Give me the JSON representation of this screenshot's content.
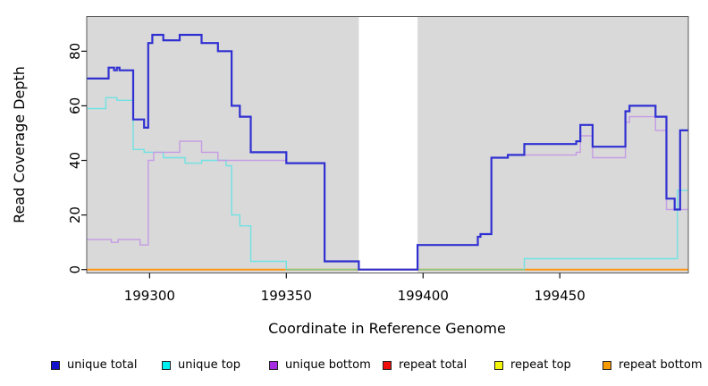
{
  "figure": {
    "y_axis_title": "Read Coverage Depth",
    "x_axis_title": "Coordinate in Reference Genome"
  },
  "colors": {
    "panel_background": "#d9d9d9",
    "panel_border": "#5a5a5a",
    "axis": "#111111",
    "gap_fill": "#ffffff",
    "baseline_blend_green": "#82ca8c"
  },
  "legend": {
    "items": [
      {
        "label": "unique total",
        "color": "#1414cc"
      },
      {
        "label": "unique top",
        "color": "#00f0f0"
      },
      {
        "label": "unique bottom",
        "color": "#a62ce2"
      },
      {
        "label": "repeat total",
        "color": "#f20d0d"
      },
      {
        "label": "repeat top",
        "color": "#f5f50a"
      },
      {
        "label": "repeat bottom",
        "color": "#f59b00"
      }
    ]
  },
  "chart_data": {
    "type": "line",
    "subtype": "step-after",
    "title": "",
    "xlabel": "Coordinate in Reference Genome",
    "ylabel": "Read Coverage Depth",
    "xlim": [
      199277,
      199497
    ],
    "ylim": [
      0,
      93
    ],
    "grid": false,
    "legend_position": "bottom",
    "x_ticks": [
      {
        "value": 199300,
        "label": "199300"
      },
      {
        "value": 199350,
        "label": "199350"
      },
      {
        "value": 199400,
        "label": "199400"
      },
      {
        "value": 199450,
        "label": "199450"
      }
    ],
    "y_ticks": [
      {
        "value": 0,
        "label": "0"
      },
      {
        "value": 20,
        "label": "20"
      },
      {
        "value": 40,
        "label": "40"
      },
      {
        "value": 60,
        "label": "60"
      },
      {
        "value": 80,
        "label": "80"
      }
    ],
    "gap_region": {
      "start": 199376.5,
      "end": 199398,
      "note": "unshaded vertical band where coverage is zero"
    },
    "series": [
      {
        "name": "repeat total",
        "color": "#f20d0d",
        "width": 1.4,
        "in_legend": true,
        "points": [
          [
            199277,
            0
          ],
          [
            199497,
            0
          ]
        ]
      },
      {
        "name": "repeat top",
        "color": "#f5f50a",
        "width": 1.4,
        "in_legend": true,
        "points": [
          [
            199277,
            0
          ],
          [
            199497,
            0
          ]
        ]
      },
      {
        "name": "repeat bottom",
        "color": "#ff9712",
        "width": 2,
        "in_legend": true,
        "points": [
          [
            199277,
            0
          ],
          [
            199497,
            0
          ]
        ]
      },
      {
        "name": "unique top",
        "color": "#6fe2e4",
        "width": 1.4,
        "in_legend": true,
        "points": [
          [
            199277,
            59
          ],
          [
            199284,
            63
          ],
          [
            199288,
            62
          ],
          [
            199294,
            44
          ],
          [
            199298,
            43
          ],
          [
            199305,
            41
          ],
          [
            199313,
            39
          ],
          [
            199319,
            40
          ],
          [
            199328,
            38
          ],
          [
            199330,
            20
          ],
          [
            199333,
            16
          ],
          [
            199337,
            3
          ],
          [
            199350,
            0
          ],
          [
            199437,
            4
          ],
          [
            199493,
            29
          ]
        ]
      },
      {
        "name": "baseline blend artifact",
        "color": "#82ca8c",
        "width": 1.6,
        "in_legend": false,
        "points": [
          [
            199350,
            0
          ],
          [
            199437,
            0
          ]
        ]
      },
      {
        "name": "unique bottom",
        "color": "#c59ce4",
        "width": 1.4,
        "in_legend": true,
        "points": [
          [
            199277,
            11
          ],
          [
            199286,
            10
          ],
          [
            199288.5,
            11
          ],
          [
            199296.5,
            9
          ],
          [
            199299.5,
            40
          ],
          [
            199301.5,
            43
          ],
          [
            199311,
            47
          ],
          [
            199319,
            43
          ],
          [
            199325,
            40
          ],
          [
            199350,
            39
          ],
          [
            199364,
            3
          ],
          [
            199376.5,
            0
          ],
          [
            199398,
            9
          ],
          [
            199420,
            12
          ],
          [
            199421,
            13
          ],
          [
            199425,
            41
          ],
          [
            199431,
            42
          ],
          [
            199437,
            42
          ],
          [
            199456,
            43
          ],
          [
            199457.5,
            49
          ],
          [
            199462,
            41
          ],
          [
            199474,
            54
          ],
          [
            199475.5,
            56
          ],
          [
            199485,
            51
          ],
          [
            199489,
            22
          ]
        ]
      },
      {
        "name": "unique total",
        "color": "#3030d2",
        "width": 2.2,
        "in_legend": true,
        "points": [
          [
            199277,
            70
          ],
          [
            199285,
            74
          ],
          [
            199287,
            73
          ],
          [
            199288,
            74
          ],
          [
            199289,
            73
          ],
          [
            199294,
            55
          ],
          [
            199298,
            52
          ],
          [
            199299.5,
            83
          ],
          [
            199301,
            86
          ],
          [
            199305,
            84
          ],
          [
            199311,
            86
          ],
          [
            199319,
            83
          ],
          [
            199325,
            80
          ],
          [
            199330,
            60
          ],
          [
            199333,
            56
          ],
          [
            199337,
            43
          ],
          [
            199350,
            39
          ],
          [
            199364,
            3
          ],
          [
            199376.5,
            0
          ],
          [
            199398,
            9
          ],
          [
            199420,
            12
          ],
          [
            199421,
            13
          ],
          [
            199425,
            41
          ],
          [
            199431,
            42
          ],
          [
            199437,
            46
          ],
          [
            199456,
            47
          ],
          [
            199457.5,
            53
          ],
          [
            199462,
            45
          ],
          [
            199474,
            58
          ],
          [
            199475.5,
            60
          ],
          [
            199485,
            56
          ],
          [
            199489,
            26
          ],
          [
            199492,
            22
          ],
          [
            199494,
            51
          ]
        ]
      }
    ]
  }
}
